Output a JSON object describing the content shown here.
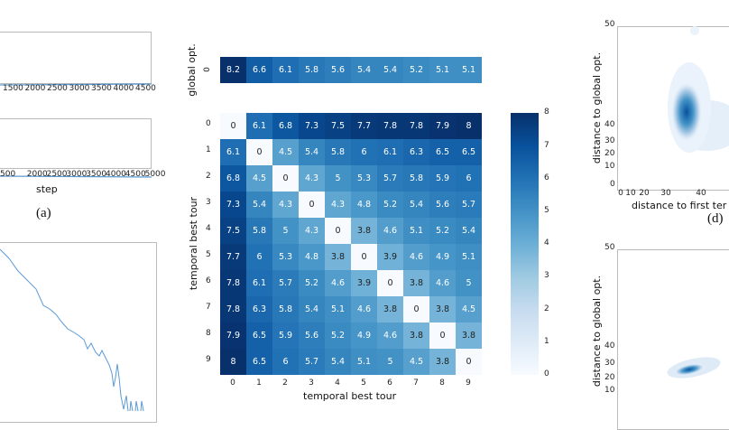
{
  "chart_data": [
    {
      "type": "line",
      "panel": "a-top",
      "x_ticks": [
        "1500",
        "2000",
        "2500",
        "3000",
        "3500",
        "4000",
        "4500"
      ],
      "note_line": "flat"
    },
    {
      "type": "line",
      "panel": "a-bottom",
      "x_ticks": [
        "500",
        "2000",
        "2500",
        "3000",
        "3500",
        "4000",
        "4500",
        "5000"
      ],
      "xlabel": "step",
      "caption": "(a)"
    },
    {
      "type": "line",
      "panel": "c-partial"
    },
    {
      "type": "heatmap",
      "panel": "global-opt-row",
      "ylabel": "global opt.",
      "row_labels": [
        "0"
      ],
      "values": [
        [
          8.2,
          6.6,
          6.1,
          5.8,
          5.6,
          5.4,
          5.4,
          5.2,
          5.1,
          5.1
        ]
      ]
    },
    {
      "type": "heatmap",
      "panel": "temporal-matrix",
      "xlabel": "temporal best tour",
      "ylabel": "temporal best tour",
      "x_ticks": [
        "0",
        "1",
        "2",
        "3",
        "4",
        "5",
        "6",
        "7",
        "8",
        "9"
      ],
      "y_ticks": [
        "0",
        "1",
        "2",
        "3",
        "4",
        "5",
        "6",
        "7",
        "8",
        "9"
      ],
      "colorbar_ticks": [
        "0",
        "1",
        "2",
        "3",
        "4",
        "5",
        "6",
        "7",
        "8"
      ],
      "colormap": "Blues",
      "vmin": 0,
      "vmax": 8,
      "values": [
        [
          0,
          6.1,
          6.8,
          7.3,
          7.5,
          7.7,
          7.8,
          7.8,
          7.9,
          8
        ],
        [
          6.1,
          0,
          4.5,
          5.4,
          5.8,
          6,
          6.1,
          6.3,
          6.5,
          6.5
        ],
        [
          6.8,
          4.5,
          0,
          4.3,
          5,
          5.3,
          5.7,
          5.8,
          5.9,
          6
        ],
        [
          7.3,
          5.4,
          4.3,
          0,
          4.3,
          4.8,
          5.2,
          5.4,
          5.6,
          5.7
        ],
        [
          7.5,
          5.8,
          5,
          4.3,
          0,
          3.8,
          4.6,
          5.1,
          5.2,
          5.4
        ],
        [
          7.7,
          6,
          5.3,
          4.8,
          3.8,
          0,
          3.9,
          4.6,
          4.9,
          5.1
        ],
        [
          7.8,
          6.1,
          5.7,
          5.2,
          4.6,
          3.9,
          0,
          3.8,
          4.6,
          5
        ],
        [
          7.8,
          6.3,
          5.8,
          5.4,
          5.1,
          4.6,
          3.8,
          0,
          3.8,
          4.5
        ],
        [
          7.9,
          6.5,
          5.9,
          5.6,
          5.2,
          4.9,
          4.6,
          3.8,
          0,
          3.8
        ],
        [
          8,
          6.5,
          6,
          5.7,
          5.4,
          5.1,
          5,
          4.5,
          3.8,
          0
        ]
      ]
    },
    {
      "type": "heatmap",
      "panel": "d",
      "ylabel": "distance to global opt.",
      "xlabel": "distance to first ter",
      "caption": "(d)",
      "y_ticks": [
        "50",
        "40",
        "30",
        "20",
        "10",
        "0"
      ],
      "x_ticks": [
        "0",
        "10",
        "20",
        "30",
        "40"
      ]
    },
    {
      "type": "heatmap",
      "panel": "d-lower",
      "ylabel": "distance to global opt.",
      "y_ticks": [
        "50",
        "40",
        "30",
        "20",
        "10"
      ]
    }
  ],
  "colors": {
    "line": "#5b9bd5",
    "blues_dark": "#08306b",
    "blues_light": "#f7fbff"
  }
}
